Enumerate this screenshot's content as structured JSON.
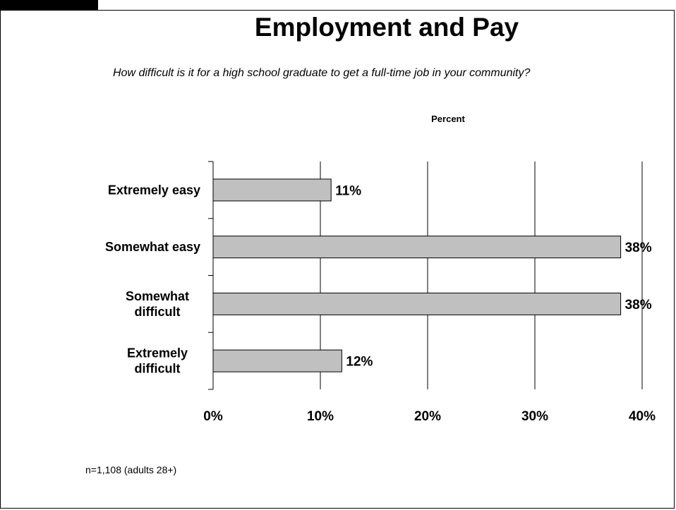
{
  "slide": {
    "title": "Employment and Pay",
    "question": "How difficult is it for a high school graduate to get a full-time job in your community?",
    "unit_label": "Percent",
    "footnote": "n=1,108 (adults 28+)"
  },
  "colors": {
    "bar_fill": "#c0c0c0",
    "bar_stroke": "#000000",
    "grid": "#000000"
  },
  "chart_data": {
    "type": "bar",
    "orientation": "horizontal",
    "title": "Employment and Pay",
    "subtitle": "How difficult is it for a high school graduate to get a full-time job in your community?",
    "xlabel": "Percent",
    "ylabel": "",
    "categories": [
      "Extremely easy",
      "Somewhat easy",
      "Somewhat\ndifficult",
      "Extremely\ndifficult"
    ],
    "values": [
      11,
      38,
      38,
      12
    ],
    "data_labels": [
      "11%",
      "38%",
      "38%",
      "12%"
    ],
    "xlim": [
      0,
      40
    ],
    "x_ticks": [
      0,
      10,
      20,
      30,
      40
    ],
    "x_tick_labels": [
      "0%",
      "10%",
      "20%",
      "30%",
      "40%"
    ],
    "grid": true,
    "legend": "none"
  }
}
